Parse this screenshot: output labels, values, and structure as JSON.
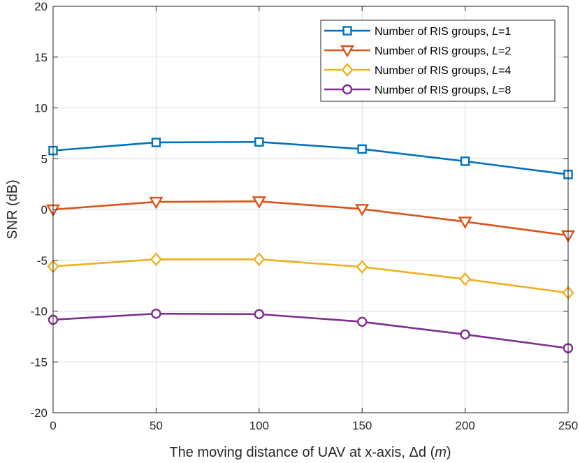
{
  "chart_data": {
    "type": "line",
    "title": "",
    "xlabel_prefix": "The moving distance of UAV at x-axis, ",
    "xlabel_symbol": "Δd",
    "xlabel_unit": "m",
    "ylabel": "SNR (dB)",
    "x": [
      0,
      50,
      100,
      150,
      200,
      250
    ],
    "xlim": [
      0,
      250
    ],
    "ylim": [
      -20,
      20
    ],
    "xticks": [
      0,
      50,
      100,
      150,
      200,
      250
    ],
    "xtick_labels": [
      "0",
      "50",
      "100",
      "150",
      "200",
      "250"
    ],
    "yticks": [
      -20,
      -15,
      -10,
      -5,
      0,
      5,
      10,
      15,
      20
    ],
    "ytick_labels": [
      "-20",
      "-15",
      "-10",
      "-5",
      "0",
      "5",
      "10",
      "15",
      "20"
    ],
    "grid": true,
    "legend_position": "top-right",
    "series": [
      {
        "name": "Number of RIS groups, ",
        "var": "L",
        "suffix": "=1",
        "marker": "square",
        "color": "#0072BD",
        "values": [
          5.8,
          6.6,
          6.65,
          5.95,
          4.75,
          3.45
        ]
      },
      {
        "name": "Number of RIS groups, ",
        "var": "L",
        "suffix": "=2",
        "marker": "triangle-down",
        "color": "#D95319",
        "values": [
          0.0,
          0.75,
          0.8,
          0.05,
          -1.2,
          -2.55
        ]
      },
      {
        "name": "Number of RIS groups, ",
        "var": "L",
        "suffix": "=4",
        "marker": "diamond",
        "color": "#EDB120",
        "values": [
          -5.6,
          -4.9,
          -4.9,
          -5.65,
          -6.85,
          -8.2
        ]
      },
      {
        "name": "Number of RIS groups, ",
        "var": "L",
        "suffix": "=8",
        "marker": "circle",
        "color": "#7E2F8E",
        "values": [
          -10.85,
          -10.25,
          -10.3,
          -11.05,
          -12.3,
          -13.65
        ]
      }
    ]
  }
}
